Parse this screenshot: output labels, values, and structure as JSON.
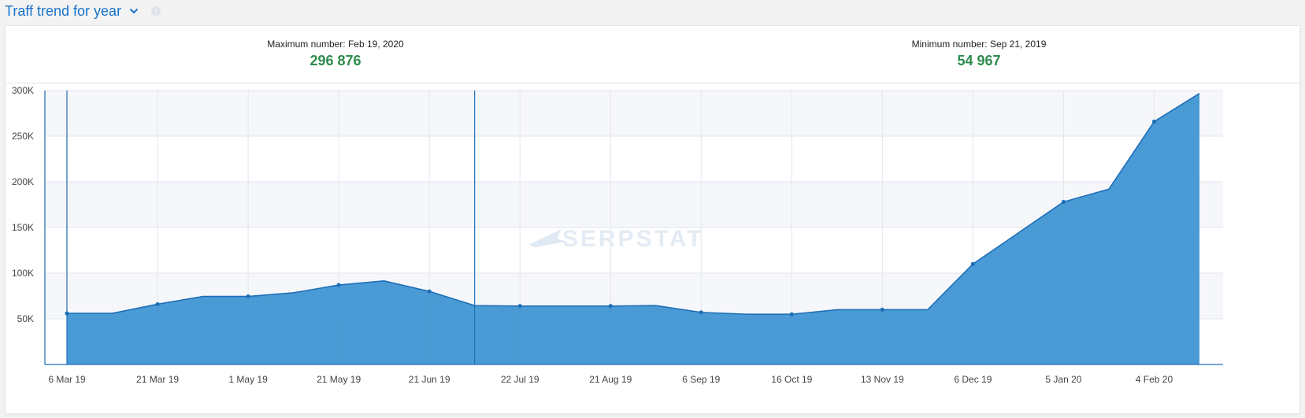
{
  "header": {
    "title": "Traff trend for year"
  },
  "stats": {
    "max_label": "Maximum number: Feb 19, 2020",
    "max_value": "296 876",
    "min_label": "Minimum number: Sep 21, 2019",
    "min_value": "54 967"
  },
  "watermark": "SERPSTAT",
  "colors": {
    "title": "#1a73c8",
    "stat_value": "#2e8b4d",
    "area_fill": "#3b92d1",
    "line": "#1f6fb8"
  },
  "chart_data": {
    "type": "area",
    "title": "Traff trend for year",
    "xlabel": "",
    "ylabel": "",
    "ylim": [
      0,
      300000
    ],
    "y_ticks": [
      {
        "value": 50000,
        "label": "50K"
      },
      {
        "value": 100000,
        "label": "100K"
      },
      {
        "value": 150000,
        "label": "150K"
      },
      {
        "value": 200000,
        "label": "200K"
      },
      {
        "value": 250000,
        "label": "250K"
      },
      {
        "value": 300000,
        "label": "300K"
      }
    ],
    "x_tick_labels": [
      "6 Mar 19",
      "21 Mar 19",
      "1 May 19",
      "21 May 19",
      "21 Jun 19",
      "22 Jul 19",
      "21 Aug 19",
      "6 Sep 19",
      "16 Oct 19",
      "13 Nov 19",
      "6 Dec 19",
      "5 Jan 20",
      "4 Feb 20"
    ],
    "grid": true,
    "series": [
      {
        "values": [
          56000,
          56000,
          66000,
          74500,
          74500,
          78500,
          87000,
          91500,
          80000,
          64500,
          64000,
          64000,
          64000,
          64500,
          57000,
          55000,
          55000,
          60000,
          60000,
          60000,
          110000,
          144000,
          178000,
          192000,
          266000,
          296876
        ],
        "markers": [
          0,
          2,
          4,
          6,
          8,
          10,
          12,
          14,
          16,
          18,
          20,
          22,
          24
        ]
      }
    ],
    "highlight_range": [
      0,
      9
    ]
  }
}
